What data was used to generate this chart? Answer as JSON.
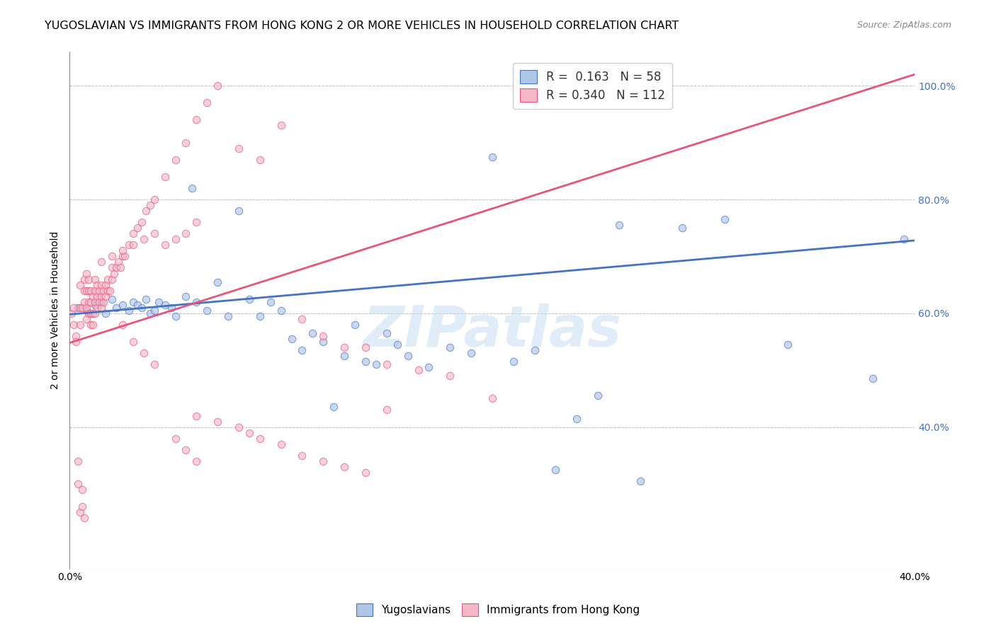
{
  "title": "YUGOSLAVIAN VS IMMIGRANTS FROM HONG KONG 2 OR MORE VEHICLES IN HOUSEHOLD CORRELATION CHART",
  "source": "Source: ZipAtlas.com",
  "ylabel": "2 or more Vehicles in Household",
  "xmin": 0.0,
  "xmax": 0.4,
  "ymin": 0.15,
  "ymax": 1.06,
  "yticks": [
    0.4,
    0.6,
    0.8,
    1.0
  ],
  "ytick_labels": [
    "40.0%",
    "60.0%",
    "80.0%",
    "100.0%"
  ],
  "xticks": [
    0.0,
    0.05,
    0.1,
    0.15,
    0.2,
    0.25,
    0.3,
    0.35,
    0.4
  ],
  "xtick_labels": [
    "0.0%",
    "",
    "",
    "",
    "",
    "",
    "",
    "",
    "40.0%"
  ],
  "watermark": "ZIPatlas",
  "blue_scatter_x": [
    0.004,
    0.008,
    0.012,
    0.015,
    0.017,
    0.02,
    0.022,
    0.025,
    0.028,
    0.03,
    0.032,
    0.034,
    0.036,
    0.038,
    0.04,
    0.042,
    0.045,
    0.048,
    0.05,
    0.055,
    0.058,
    0.06,
    0.065,
    0.07,
    0.075,
    0.08,
    0.085,
    0.09,
    0.095,
    0.1,
    0.105,
    0.11,
    0.115,
    0.12,
    0.125,
    0.13,
    0.135,
    0.14,
    0.145,
    0.15,
    0.155,
    0.16,
    0.17,
    0.18,
    0.19,
    0.2,
    0.21,
    0.22,
    0.23,
    0.24,
    0.25,
    0.26,
    0.27,
    0.29,
    0.31,
    0.34,
    0.38,
    0.395
  ],
  "blue_scatter_y": [
    0.61,
    0.605,
    0.615,
    0.62,
    0.6,
    0.625,
    0.61,
    0.615,
    0.605,
    0.62,
    0.615,
    0.61,
    0.625,
    0.6,
    0.605,
    0.62,
    0.615,
    0.61,
    0.595,
    0.63,
    0.82,
    0.62,
    0.605,
    0.655,
    0.595,
    0.78,
    0.625,
    0.595,
    0.62,
    0.605,
    0.555,
    0.535,
    0.565,
    0.55,
    0.435,
    0.525,
    0.58,
    0.515,
    0.51,
    0.565,
    0.545,
    0.525,
    0.505,
    0.54,
    0.53,
    0.875,
    0.515,
    0.535,
    0.325,
    0.415,
    0.455,
    0.755,
    0.305,
    0.75,
    0.765,
    0.545,
    0.485,
    0.73
  ],
  "pink_scatter_x": [
    0.001,
    0.002,
    0.002,
    0.003,
    0.003,
    0.004,
    0.004,
    0.005,
    0.005,
    0.005,
    0.005,
    0.006,
    0.006,
    0.006,
    0.007,
    0.007,
    0.007,
    0.007,
    0.008,
    0.008,
    0.008,
    0.008,
    0.009,
    0.009,
    0.009,
    0.009,
    0.01,
    0.01,
    0.01,
    0.01,
    0.011,
    0.011,
    0.011,
    0.012,
    0.012,
    0.012,
    0.012,
    0.013,
    0.013,
    0.013,
    0.014,
    0.014,
    0.015,
    0.015,
    0.015,
    0.016,
    0.016,
    0.017,
    0.017,
    0.018,
    0.018,
    0.019,
    0.02,
    0.02,
    0.021,
    0.022,
    0.023,
    0.024,
    0.025,
    0.026,
    0.028,
    0.03,
    0.032,
    0.034,
    0.036,
    0.038,
    0.04,
    0.045,
    0.05,
    0.055,
    0.06,
    0.065,
    0.07,
    0.08,
    0.09,
    0.1,
    0.11,
    0.12,
    0.13,
    0.14,
    0.15,
    0.165,
    0.18,
    0.2,
    0.15,
    0.06,
    0.07,
    0.08,
    0.085,
    0.09,
    0.1,
    0.11,
    0.12,
    0.13,
    0.14,
    0.05,
    0.055,
    0.06,
    0.025,
    0.03,
    0.035,
    0.04,
    0.015,
    0.02,
    0.025,
    0.03,
    0.035,
    0.04,
    0.045,
    0.05,
    0.055,
    0.06
  ],
  "pink_scatter_y": [
    0.6,
    0.61,
    0.58,
    0.56,
    0.55,
    0.3,
    0.34,
    0.58,
    0.25,
    0.61,
    0.65,
    0.26,
    0.29,
    0.61,
    0.62,
    0.64,
    0.66,
    0.24,
    0.59,
    0.61,
    0.64,
    0.67,
    0.6,
    0.62,
    0.64,
    0.66,
    0.58,
    0.6,
    0.62,
    0.64,
    0.58,
    0.6,
    0.63,
    0.6,
    0.62,
    0.64,
    0.66,
    0.61,
    0.63,
    0.65,
    0.62,
    0.64,
    0.61,
    0.63,
    0.65,
    0.62,
    0.64,
    0.63,
    0.65,
    0.64,
    0.66,
    0.64,
    0.66,
    0.68,
    0.67,
    0.68,
    0.69,
    0.68,
    0.7,
    0.7,
    0.72,
    0.74,
    0.75,
    0.76,
    0.78,
    0.79,
    0.8,
    0.84,
    0.87,
    0.9,
    0.94,
    0.97,
    1.0,
    0.89,
    0.87,
    0.93,
    0.59,
    0.56,
    0.54,
    0.54,
    0.51,
    0.5,
    0.49,
    0.45,
    0.43,
    0.42,
    0.41,
    0.4,
    0.39,
    0.38,
    0.37,
    0.35,
    0.34,
    0.33,
    0.32,
    0.38,
    0.36,
    0.34,
    0.58,
    0.55,
    0.53,
    0.51,
    0.69,
    0.7,
    0.71,
    0.72,
    0.73,
    0.74,
    0.72,
    0.73,
    0.74,
    0.76
  ],
  "blue_line_x": [
    0.0,
    0.4
  ],
  "blue_line_y": [
    0.598,
    0.728
  ],
  "pink_line_x": [
    0.0,
    0.4
  ],
  "pink_line_y": [
    0.548,
    1.02
  ],
  "scatter_alpha": 0.65,
  "scatter_size": 55,
  "blue_color": "#4472c4",
  "blue_fill": "#aec6e8",
  "pink_color": "#e8547a",
  "pink_fill": "#f4b8c8",
  "bg_color": "#ffffff",
  "grid_color": "#b0b0b0",
  "title_fontsize": 11.5,
  "axis_label_fontsize": 10,
  "tick_fontsize": 10,
  "legend_label_1": "R =  0.163   N = 58",
  "legend_label_2": "R = 0.340   N = 112",
  "bottom_legend_1": "Yugoslavians",
  "bottom_legend_2": "Immigrants from Hong Kong"
}
